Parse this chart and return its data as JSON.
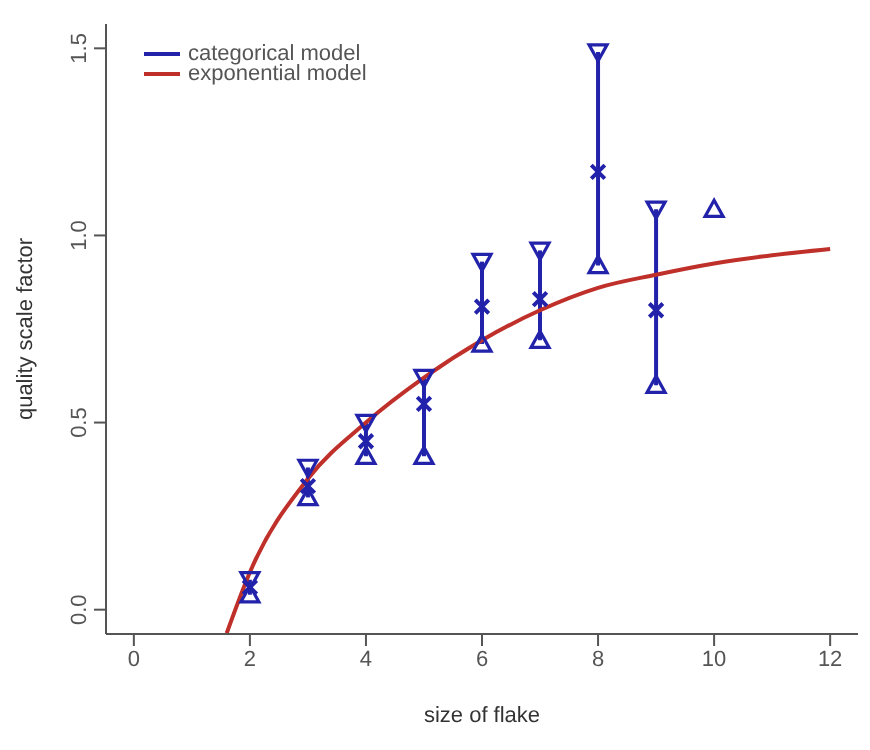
{
  "chart_data": {
    "type": "scatter",
    "xlabel": "size of flake",
    "ylabel": "quality scale factor",
    "xlim": [
      -0.48,
      12.48
    ],
    "ylim": [
      -0.065,
      1.565
    ],
    "xticks": [
      0,
      2,
      4,
      6,
      8,
      10,
      12
    ],
    "yticks": [
      {
        "value": 0,
        "label": "0.0"
      },
      {
        "value": 0.5,
        "label": "0.5"
      },
      {
        "value": 1,
        "label": "1.0"
      },
      {
        "value": 1.5,
        "label": "1.5"
      }
    ],
    "grid": false,
    "legend": "top left",
    "series": [
      {
        "name": "categorical model",
        "marker": "cross",
        "color": "#2222aa",
        "x": [
          2,
          3,
          4,
          5,
          6,
          7,
          8,
          9
        ],
        "values": [
          0.06,
          0.33,
          0.45,
          0.55,
          0.81,
          0.83,
          1.17,
          0.8
        ],
        "errors": [
          [
            0.04,
            0.08
          ],
          [
            0.3,
            0.38
          ],
          [
            0.41,
            0.5
          ],
          [
            0.41,
            0.62
          ],
          [
            0.71,
            0.93
          ],
          [
            0.72,
            0.96
          ],
          [
            0.92,
            1.49
          ],
          [
            0.6,
            1.07
          ]
        ]
      },
      {
        "marker": "triangle",
        "color": "#2222aa",
        "x": [
          2,
          3,
          4,
          5,
          6,
          7,
          8,
          9,
          10
        ],
        "values": [
          0.04,
          0.3,
          0.41,
          0.41,
          0.71,
          0.72,
          0.92,
          0.6,
          1.07
        ]
      },
      {
        "marker": "triangle",
        "color": "#2222aa",
        "x": [
          2,
          3,
          4,
          5,
          6,
          7,
          8,
          9
        ],
        "values": [
          0.08,
          0.38,
          0.5,
          0.62,
          0.93,
          0.96,
          1.49,
          1.07
        ]
      },
      {
        "name": "exponential model",
        "type": "line",
        "marker": "none",
        "color": "#c0302a",
        "x": [
          1.6,
          2,
          3,
          4,
          5,
          6,
          7,
          8,
          9,
          10,
          11,
          12
        ],
        "values": [
          -0.063,
          0.1,
          0.35,
          0.5,
          0.62,
          0.72,
          0.8,
          0.86,
          0.895,
          0.925,
          0.947,
          0.964
        ]
      }
    ]
  }
}
